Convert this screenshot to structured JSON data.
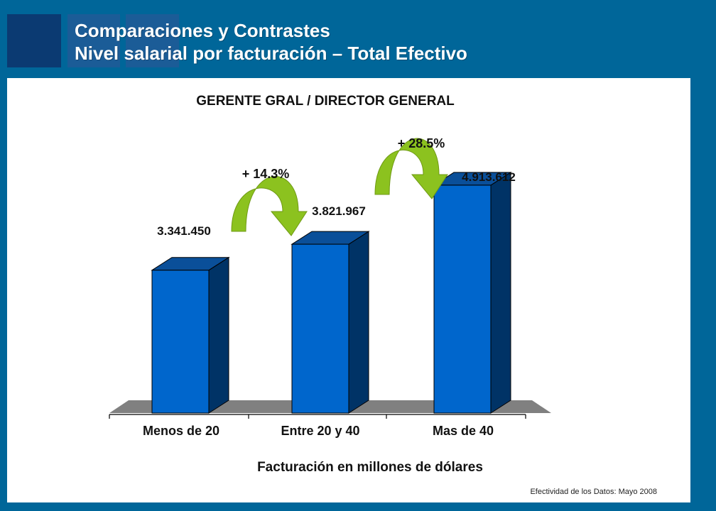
{
  "header": {
    "title_line1": "Comparaciones y Contrastes",
    "title_line2": "Nivel salarial por facturación – Total Efectivo"
  },
  "footnote": "Efectividad de los Datos: Mayo 2008",
  "colors": {
    "background": "#006699",
    "bar_front": "#0066cc",
    "bar_side": "#003366",
    "bar_top": "#0a4f99",
    "arrow": "#8cc21f",
    "floor": "#808080"
  },
  "chart_data": {
    "type": "bar",
    "title": "GERENTE GRAL / DIRECTOR GENERAL",
    "xlabel": "Facturación en millones de dólares",
    "ylabel": "",
    "categories": [
      "Menos de 20",
      "Entre 20 y 40",
      "Mas de 40"
    ],
    "values": [
      3341450,
      3821967,
      4913612
    ],
    "value_labels": [
      "3.341.450",
      "3.821.967",
      "4.913.612"
    ],
    "changes": [
      "+ 14.3%",
      "+ 28.5%"
    ],
    "style": "3d",
    "grid": false,
    "legend": false
  }
}
